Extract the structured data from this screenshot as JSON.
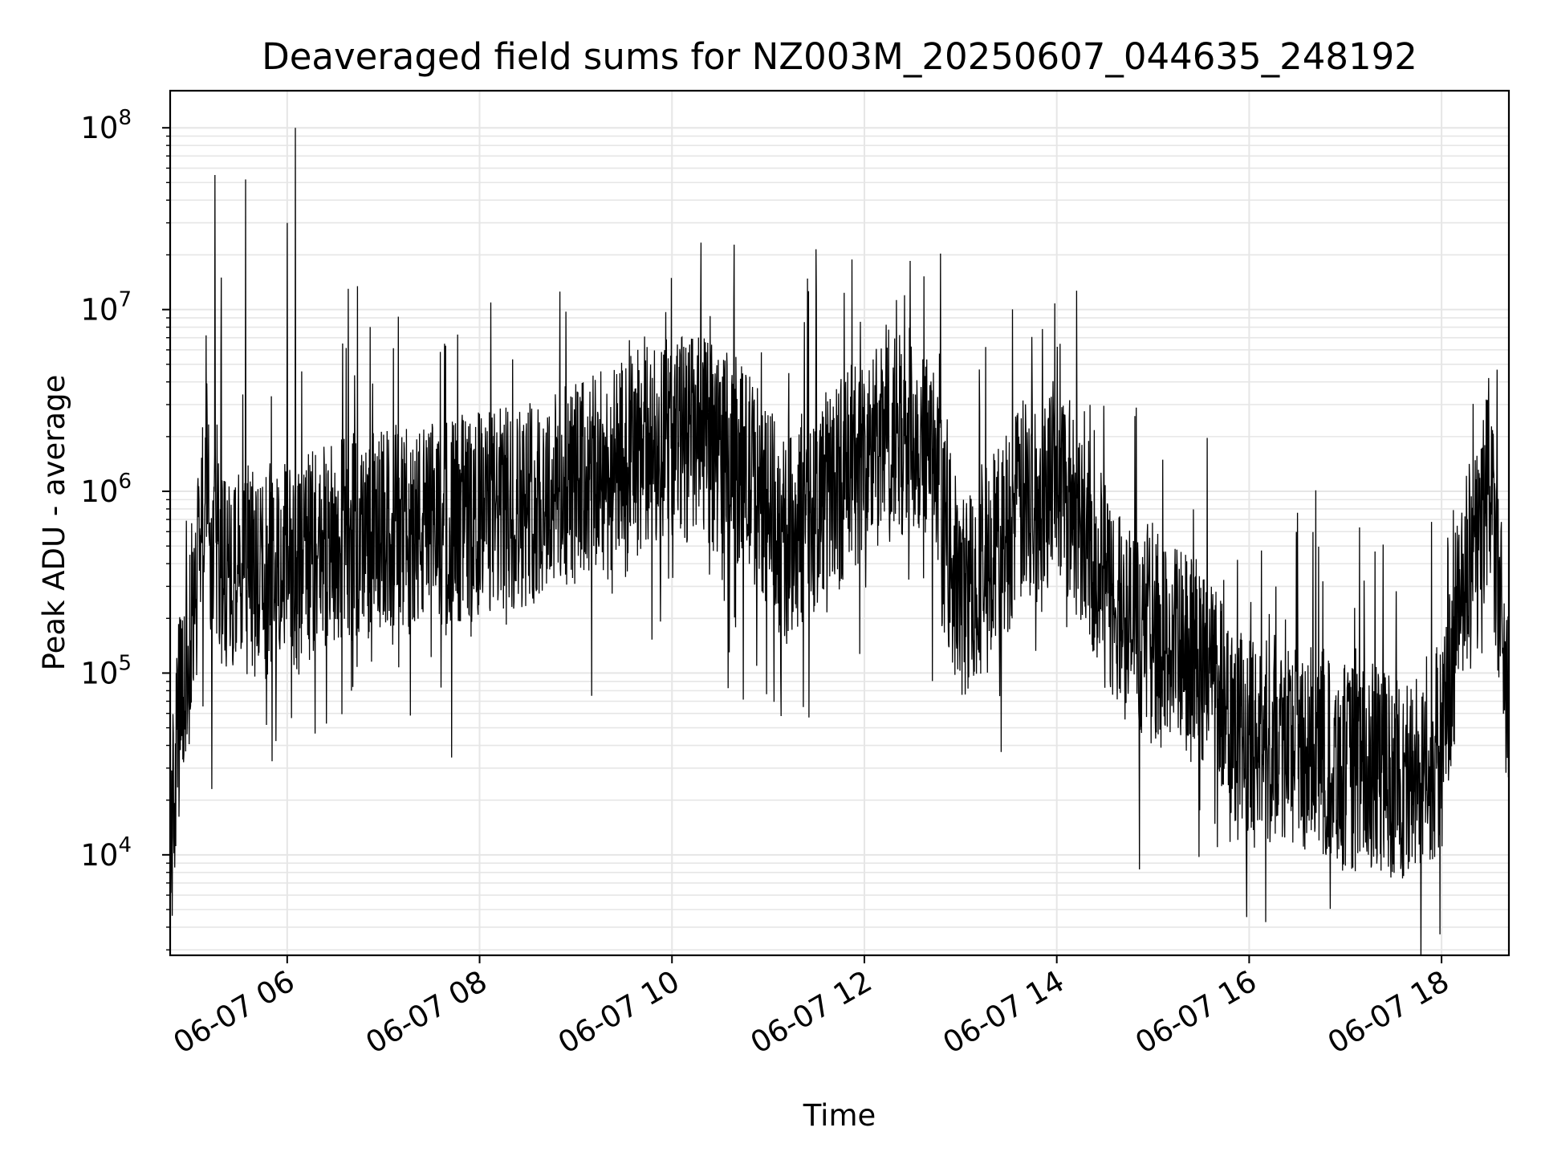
{
  "chart_data": {
    "type": "line",
    "title": "Deaveraged field sums for NZ003M_20250607_044635_248192",
    "xlabel": "Time",
    "ylabel": "Peak ADU - average",
    "yscale": "log",
    "xlim": [
      "06-07 04:47",
      "06-07 18:42"
    ],
    "ylim": [
      2800,
      160000000
    ],
    "grid": "on",
    "legend": "none",
    "line_color": "#000000",
    "x_ticks": [
      "06-07 06",
      "06-07 08",
      "06-07 10",
      "06-07 12",
      "06-07 14",
      "06-07 16",
      "06-07 18"
    ],
    "y_ticks": [
      {
        "base": "10",
        "exp": "4",
        "value": 10000
      },
      {
        "base": "10",
        "exp": "5",
        "value": 100000
      },
      {
        "base": "10",
        "exp": "6",
        "value": 1000000
      },
      {
        "base": "10",
        "exp": "7",
        "value": 10000000
      },
      {
        "base": "10",
        "exp": "8",
        "value": 100000000
      }
    ],
    "series": [
      {
        "x": [
          "06-07 04:47",
          "06-07 04:52",
          "06-07 04:57",
          "06-07 05:03",
          "06-07 05:07",
          "06-07 05:10",
          "06-07 05:13",
          "06-07 05:16",
          "06-07 05:20",
          "06-07 05:25",
          "06-07 05:30",
          "06-07 05:33",
          "06-07 05:36",
          "06-07 05:40",
          "06-07 05:45",
          "06-07 05:50",
          "06-07 05:55",
          "06-07 06:02",
          "06-07 06:05",
          "06-07 06:10",
          "06-07 06:20",
          "06-07 06:30",
          "06-07 06:36",
          "06-07 06:45",
          "06-07 07:00",
          "06-07 07:15",
          "06-07 07:30",
          "06-07 07:45",
          "06-07 08:00",
          "06-07 08:20",
          "06-07 08:40",
          "06-07 09:00",
          "06-07 09:20",
          "06-07 09:40",
          "06-07 10:00",
          "06-07 10:20",
          "06-07 10:40",
          "06-07 11:00",
          "06-07 11:10",
          "06-07 11:20",
          "06-07 11:40",
          "06-07 12:00",
          "06-07 12:20",
          "06-07 12:30",
          "06-07 12:40",
          "06-07 12:50",
          "06-07 13:00",
          "06-07 13:20",
          "06-07 13:40",
          "06-07 14:00",
          "06-07 14:15",
          "06-07 14:30",
          "06-07 14:45",
          "06-07 15:00",
          "06-07 15:15",
          "06-07 15:30",
          "06-07 15:40",
          "06-07 15:50",
          "06-07 16:00",
          "06-07 16:20",
          "06-07 16:40",
          "06-07 17:00",
          "06-07 17:20",
          "06-07 17:40",
          "06-07 18:00",
          "06-07 18:10",
          "06-07 18:20",
          "06-07 18:30",
          "06-07 18:42"
        ],
        "values": [
          10000,
          50000,
          90000,
          300000,
          800000,
          1200000,
          700000,
          500000,
          400000,
          300000,
          350000,
          300000,
          400000,
          350000,
          300000,
          400000,
          500000,
          450000,
          300000,
          400000,
          500000,
          550000,
          500000,
          550000,
          600000,
          600000,
          650000,
          700000,
          750000,
          800000,
          950000,
          1100000,
          1200000,
          1700000,
          2000000,
          1900000,
          1500000,
          900000,
          500000,
          650000,
          1100000,
          1500000,
          2000000,
          2200000,
          1800000,
          600000,
          250000,
          450000,
          900000,
          1300000,
          700000,
          300000,
          180000,
          150000,
          130000,
          110000,
          100000,
          60000,
          40000,
          45000,
          38000,
          30000,
          30000,
          25000,
          40000,
          200000,
          500000,
          1200000,
          60000
        ]
      }
    ],
    "spikes": {
      "x": [
        "06-07 05:15",
        "06-07 05:19",
        "06-07 05:34",
        "06-07 06:00",
        "06-07 06:05",
        "06-07 06:38",
        "06-07 11:30",
        "06-07 12:25"
      ],
      "values": [
        55000000,
        15000000,
        52000000,
        30000000,
        100000000,
        13000000,
        12000000,
        12000000
      ]
    },
    "dips": {
      "x": [
        "06-07 05:13",
        "06-07 06:40",
        "06-07 09:10",
        "06-07 11:08",
        "06-07 11:22",
        "06-07 16:48",
        "06-07 17:38"
      ],
      "values": [
        23000,
        80000,
        75000,
        58000,
        65000,
        10000,
        10000
      ]
    }
  }
}
